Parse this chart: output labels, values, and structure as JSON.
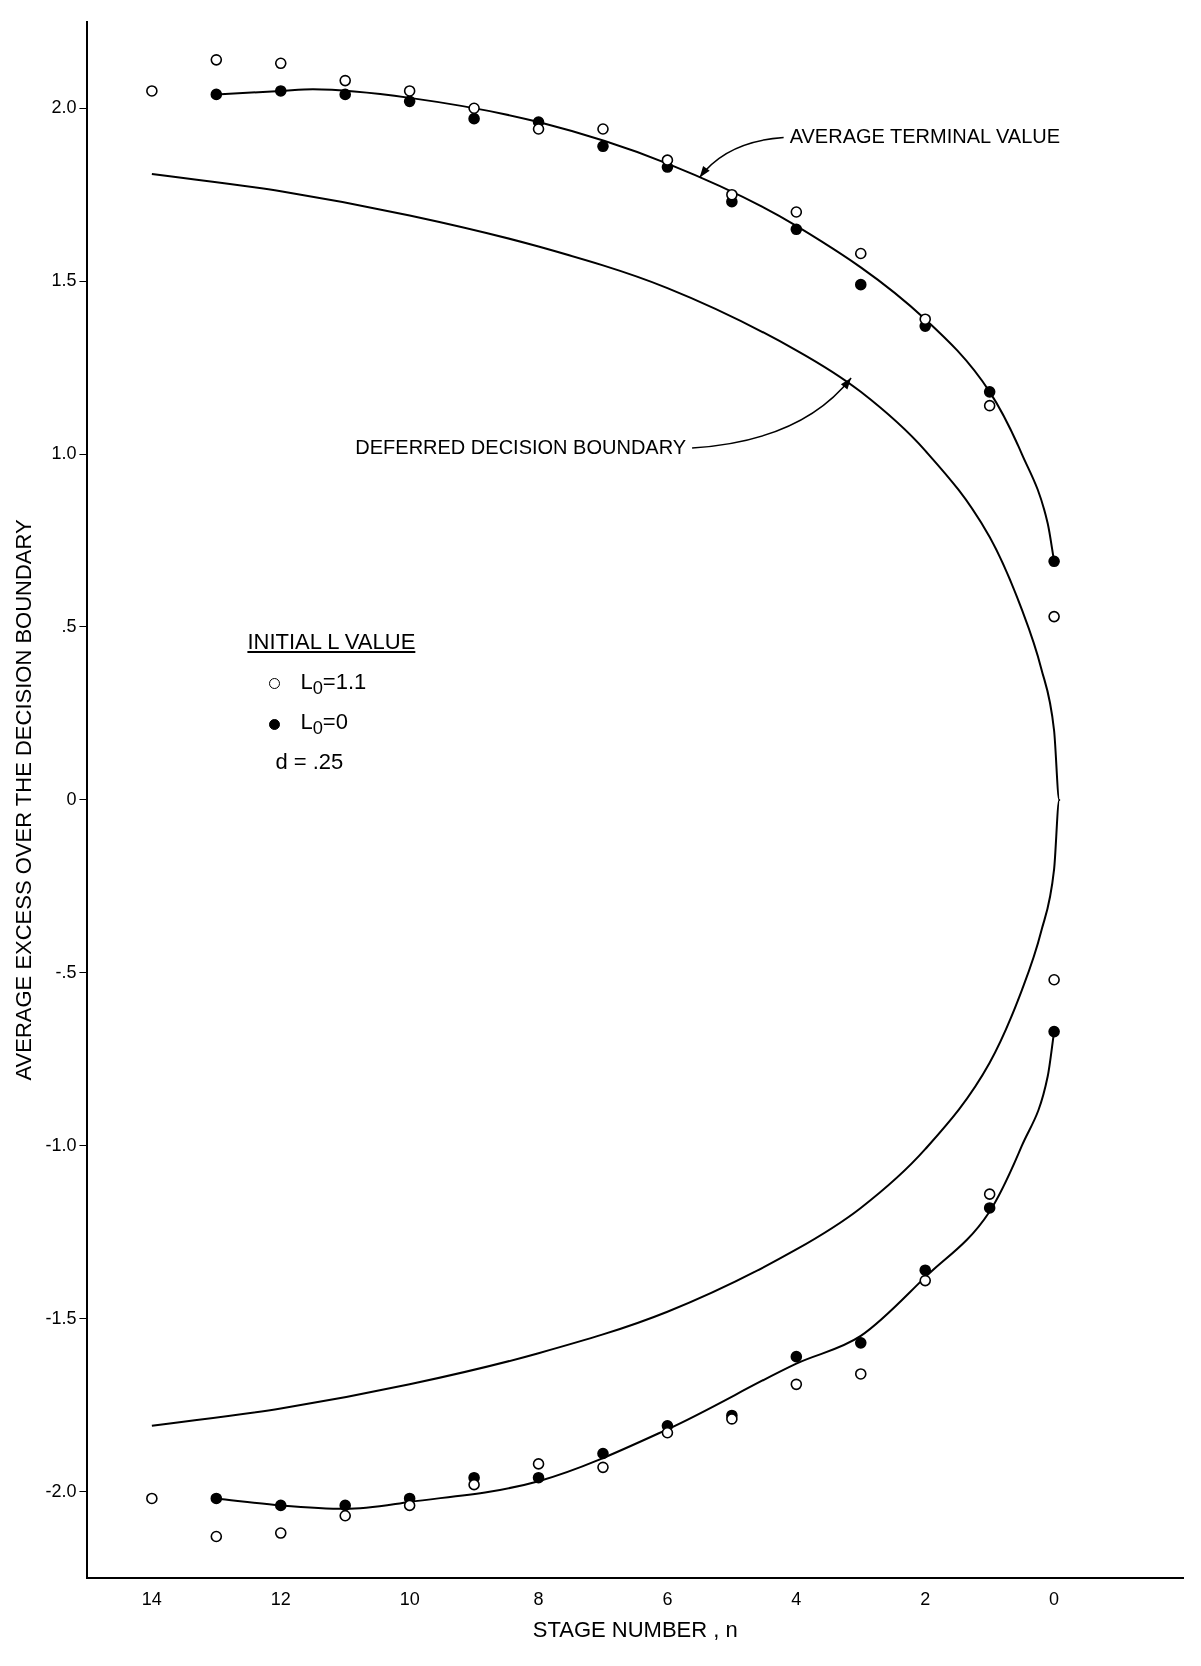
{
  "chart_data": {
    "type": "scatter",
    "xlabel": "STAGE NUMBER , n",
    "ylabel": "AVERAGE EXCESS OVER THE DECISION BOUNDARY",
    "legend_title": "INITIAL L VALUE",
    "legend": "left",
    "marker": "circle",
    "grid": false,
    "xlim": [
      15,
      -2
    ],
    "ylim": [
      -2.25,
      2.25
    ],
    "xticks": [
      14,
      12,
      10,
      8,
      6,
      4,
      2,
      0
    ],
    "yticks": [
      {
        "value": 2,
        "label": "2.0"
      },
      {
        "value": 1.5,
        "label": "1.5"
      },
      {
        "value": 1,
        "label": "1.0"
      },
      {
        "value": 0.5,
        "label": ".5"
      },
      0,
      {
        "value": -0.5,
        "label": "-.5"
      },
      {
        "value": -1,
        "label": "-1.0"
      },
      {
        "value": -1.5,
        "label": "-1.5"
      },
      {
        "value": -2,
        "label": "-2.0"
      }
    ],
    "series": [
      {
        "name": "L$_{0}$=1.1",
        "type": "scatter",
        "color": "#ffffff",
        "x": [
          14,
          13,
          12,
          11,
          10,
          9,
          8,
          7,
          6,
          5,
          4,
          3,
          2,
          1,
          0,
          14,
          13,
          12,
          11,
          10,
          9,
          8,
          7,
          6,
          5,
          4,
          3,
          2,
          1,
          0
        ],
        "values": [
          2.05,
          2.14,
          2.13,
          2.08,
          2.05,
          2.0,
          1.94,
          1.94,
          1.85,
          1.75,
          1.7,
          1.58,
          1.39,
          1.14,
          0.53,
          -2.02,
          -2.13,
          -2.12,
          -2.07,
          -2.04,
          -1.98,
          -1.92,
          -1.93,
          -1.83,
          -1.79,
          -1.69,
          -1.66,
          -1.39,
          -1.14,
          -0.52
        ]
      },
      {
        "name": "L$_{0}$=0",
        "type": "scatter",
        "color": "#000000",
        "x": [
          13,
          12,
          11,
          10,
          9,
          8,
          7,
          6,
          5,
          4,
          3,
          2,
          1,
          0,
          13,
          12,
          11,
          10,
          9,
          8,
          7,
          6,
          5,
          4,
          3,
          2,
          1,
          0
        ],
        "values": [
          2.04,
          2.05,
          2.04,
          2.02,
          1.97,
          1.96,
          1.89,
          1.83,
          1.73,
          1.65,
          1.49,
          1.37,
          1.18,
          0.69,
          -2.02,
          -2.04,
          -2.04,
          -2.02,
          -1.96,
          -1.96,
          -1.89,
          -1.81,
          -1.78,
          -1.61,
          -1.57,
          -1.36,
          -1.18,
          -0.67
        ]
      },
      {
        "type": "line",
        "color": "#000000",
        "marker": "none",
        "x": [
          13,
          12,
          11.5,
          10,
          8,
          6,
          4,
          2,
          1,
          0.5,
          0.1,
          0
        ],
        "values": [
          2.04,
          2.05,
          2.055,
          2.03,
          1.96,
          1.84,
          1.66,
          1.39,
          1.18,
          1.0,
          0.8,
          0.69
        ]
      },
      {
        "type": "line",
        "color": "#000000",
        "marker": "none",
        "x": [
          13,
          12,
          11,
          10,
          8,
          6,
          4,
          3,
          2,
          1,
          0.5,
          0.1,
          0
        ],
        "values": [
          -2.02,
          -2.04,
          -2.05,
          -2.03,
          -1.97,
          -1.82,
          -1.63,
          -1.55,
          -1.38,
          -1.19,
          -1.0,
          -0.8,
          -0.67
        ]
      },
      {
        "type": "line",
        "color": "#000000",
        "marker": "none",
        "x": [
          14,
          12,
          10,
          8,
          6,
          4,
          3,
          2,
          1,
          0.5,
          0.2,
          0,
          -0.08,
          0,
          0.2,
          0.5,
          1,
          2,
          3,
          4,
          6,
          8,
          10,
          12,
          14
        ],
        "values": [
          1.81,
          1.76,
          1.69,
          1.6,
          1.48,
          1.3,
          1.18,
          1.01,
          0.76,
          0.55,
          0.38,
          0.2,
          0,
          -0.2,
          -0.38,
          -0.55,
          -0.76,
          -1.01,
          -1.18,
          -1.3,
          -1.48,
          -1.6,
          -1.69,
          -1.76,
          -1.81
        ]
      }
    ],
    "annotations": [
      {
        "text": "AVERAGE TERMINAL VALUE",
        "x": 5.5,
        "y": 1.8
      },
      {
        "text": "DEFERRED DECISION BOUNDARY",
        "x": 3.15,
        "y": 1.22
      },
      "d = .25"
    ]
  }
}
